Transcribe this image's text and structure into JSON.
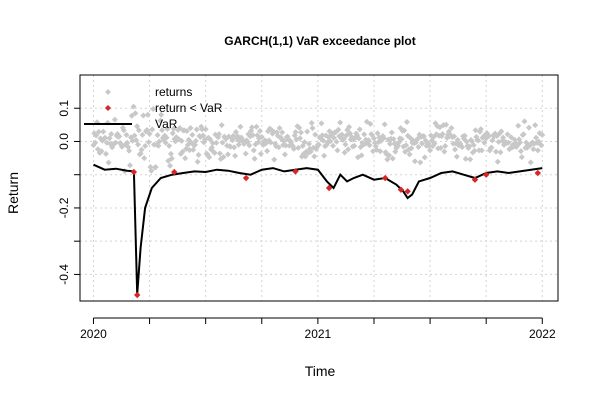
{
  "chart_data": {
    "type": "scatter",
    "title": "GARCH(1,1) VaR exceedance plot",
    "xlabel": "Time",
    "ylabel": "Return",
    "x_ticks": [
      "2020",
      "2021",
      "2022"
    ],
    "y_ticks": [
      "-0.4",
      "-0.2",
      "0.0",
      "0.1"
    ],
    "x_tick_values": [
      2020,
      2021,
      2022
    ],
    "y_tick_values": [
      -0.4,
      -0.2,
      0.0,
      0.1
    ],
    "ylim": [
      -0.48,
      0.2
    ],
    "xlim": [
      2019.94,
      2022.07
    ],
    "grid": true,
    "legend_position": "top-left",
    "legend": [
      {
        "label": "returns",
        "color": "#c8c8c8",
        "marker": "diamond"
      },
      {
        "label": "return < VaR",
        "color": "#d62728",
        "marker": "diamond"
      },
      {
        "label": "VaR",
        "color": "#000000",
        "marker": "line"
      }
    ],
    "series": [
      {
        "name": "VaR",
        "type": "line",
        "color": "#000000",
        "points": [
          [
            2020.0,
            -0.07
          ],
          [
            2020.05,
            -0.085
          ],
          [
            2020.1,
            -0.082
          ],
          [
            2020.15,
            -0.088
          ],
          [
            2020.18,
            -0.09
          ],
          [
            2020.195,
            -0.46
          ],
          [
            2020.21,
            -0.32
          ],
          [
            2020.23,
            -0.2
          ],
          [
            2020.26,
            -0.14
          ],
          [
            2020.3,
            -0.11
          ],
          [
            2020.35,
            -0.1
          ],
          [
            2020.4,
            -0.095
          ],
          [
            2020.45,
            -0.09
          ],
          [
            2020.5,
            -0.092
          ],
          [
            2020.55,
            -0.085
          ],
          [
            2020.6,
            -0.088
          ],
          [
            2020.65,
            -0.095
          ],
          [
            2020.7,
            -0.1
          ],
          [
            2020.75,
            -0.085
          ],
          [
            2020.8,
            -0.08
          ],
          [
            2020.85,
            -0.09
          ],
          [
            2020.9,
            -0.085
          ],
          [
            2020.95,
            -0.08
          ],
          [
            2021.0,
            -0.085
          ],
          [
            2021.04,
            -0.12
          ],
          [
            2021.07,
            -0.14
          ],
          [
            2021.1,
            -0.1
          ],
          [
            2021.13,
            -0.12
          ],
          [
            2021.16,
            -0.11
          ],
          [
            2021.2,
            -0.1
          ],
          [
            2021.25,
            -0.115
          ],
          [
            2021.3,
            -0.11
          ],
          [
            2021.35,
            -0.13
          ],
          [
            2021.38,
            -0.15
          ],
          [
            2021.4,
            -0.17
          ],
          [
            2021.42,
            -0.16
          ],
          [
            2021.45,
            -0.12
          ],
          [
            2021.5,
            -0.11
          ],
          [
            2021.55,
            -0.095
          ],
          [
            2021.6,
            -0.09
          ],
          [
            2021.65,
            -0.1
          ],
          [
            2021.7,
            -0.11
          ],
          [
            2021.75,
            -0.095
          ],
          [
            2021.8,
            -0.09
          ],
          [
            2021.85,
            -0.095
          ],
          [
            2021.9,
            -0.09
          ],
          [
            2021.95,
            -0.085
          ],
          [
            2022.0,
            -0.08
          ]
        ]
      },
      {
        "name": "return < VaR",
        "type": "scatter",
        "color": "#d62728",
        "points": [
          [
            2020.18,
            -0.092
          ],
          [
            2020.195,
            -0.462
          ],
          [
            2020.36,
            -0.092
          ],
          [
            2020.68,
            -0.11
          ],
          [
            2020.9,
            -0.09
          ],
          [
            2021.05,
            -0.14
          ],
          [
            2021.3,
            -0.11
          ],
          [
            2021.37,
            -0.145
          ],
          [
            2021.4,
            -0.15
          ],
          [
            2021.7,
            -0.115
          ],
          [
            2021.75,
            -0.1
          ],
          [
            2021.98,
            -0.095
          ]
        ]
      }
    ]
  }
}
